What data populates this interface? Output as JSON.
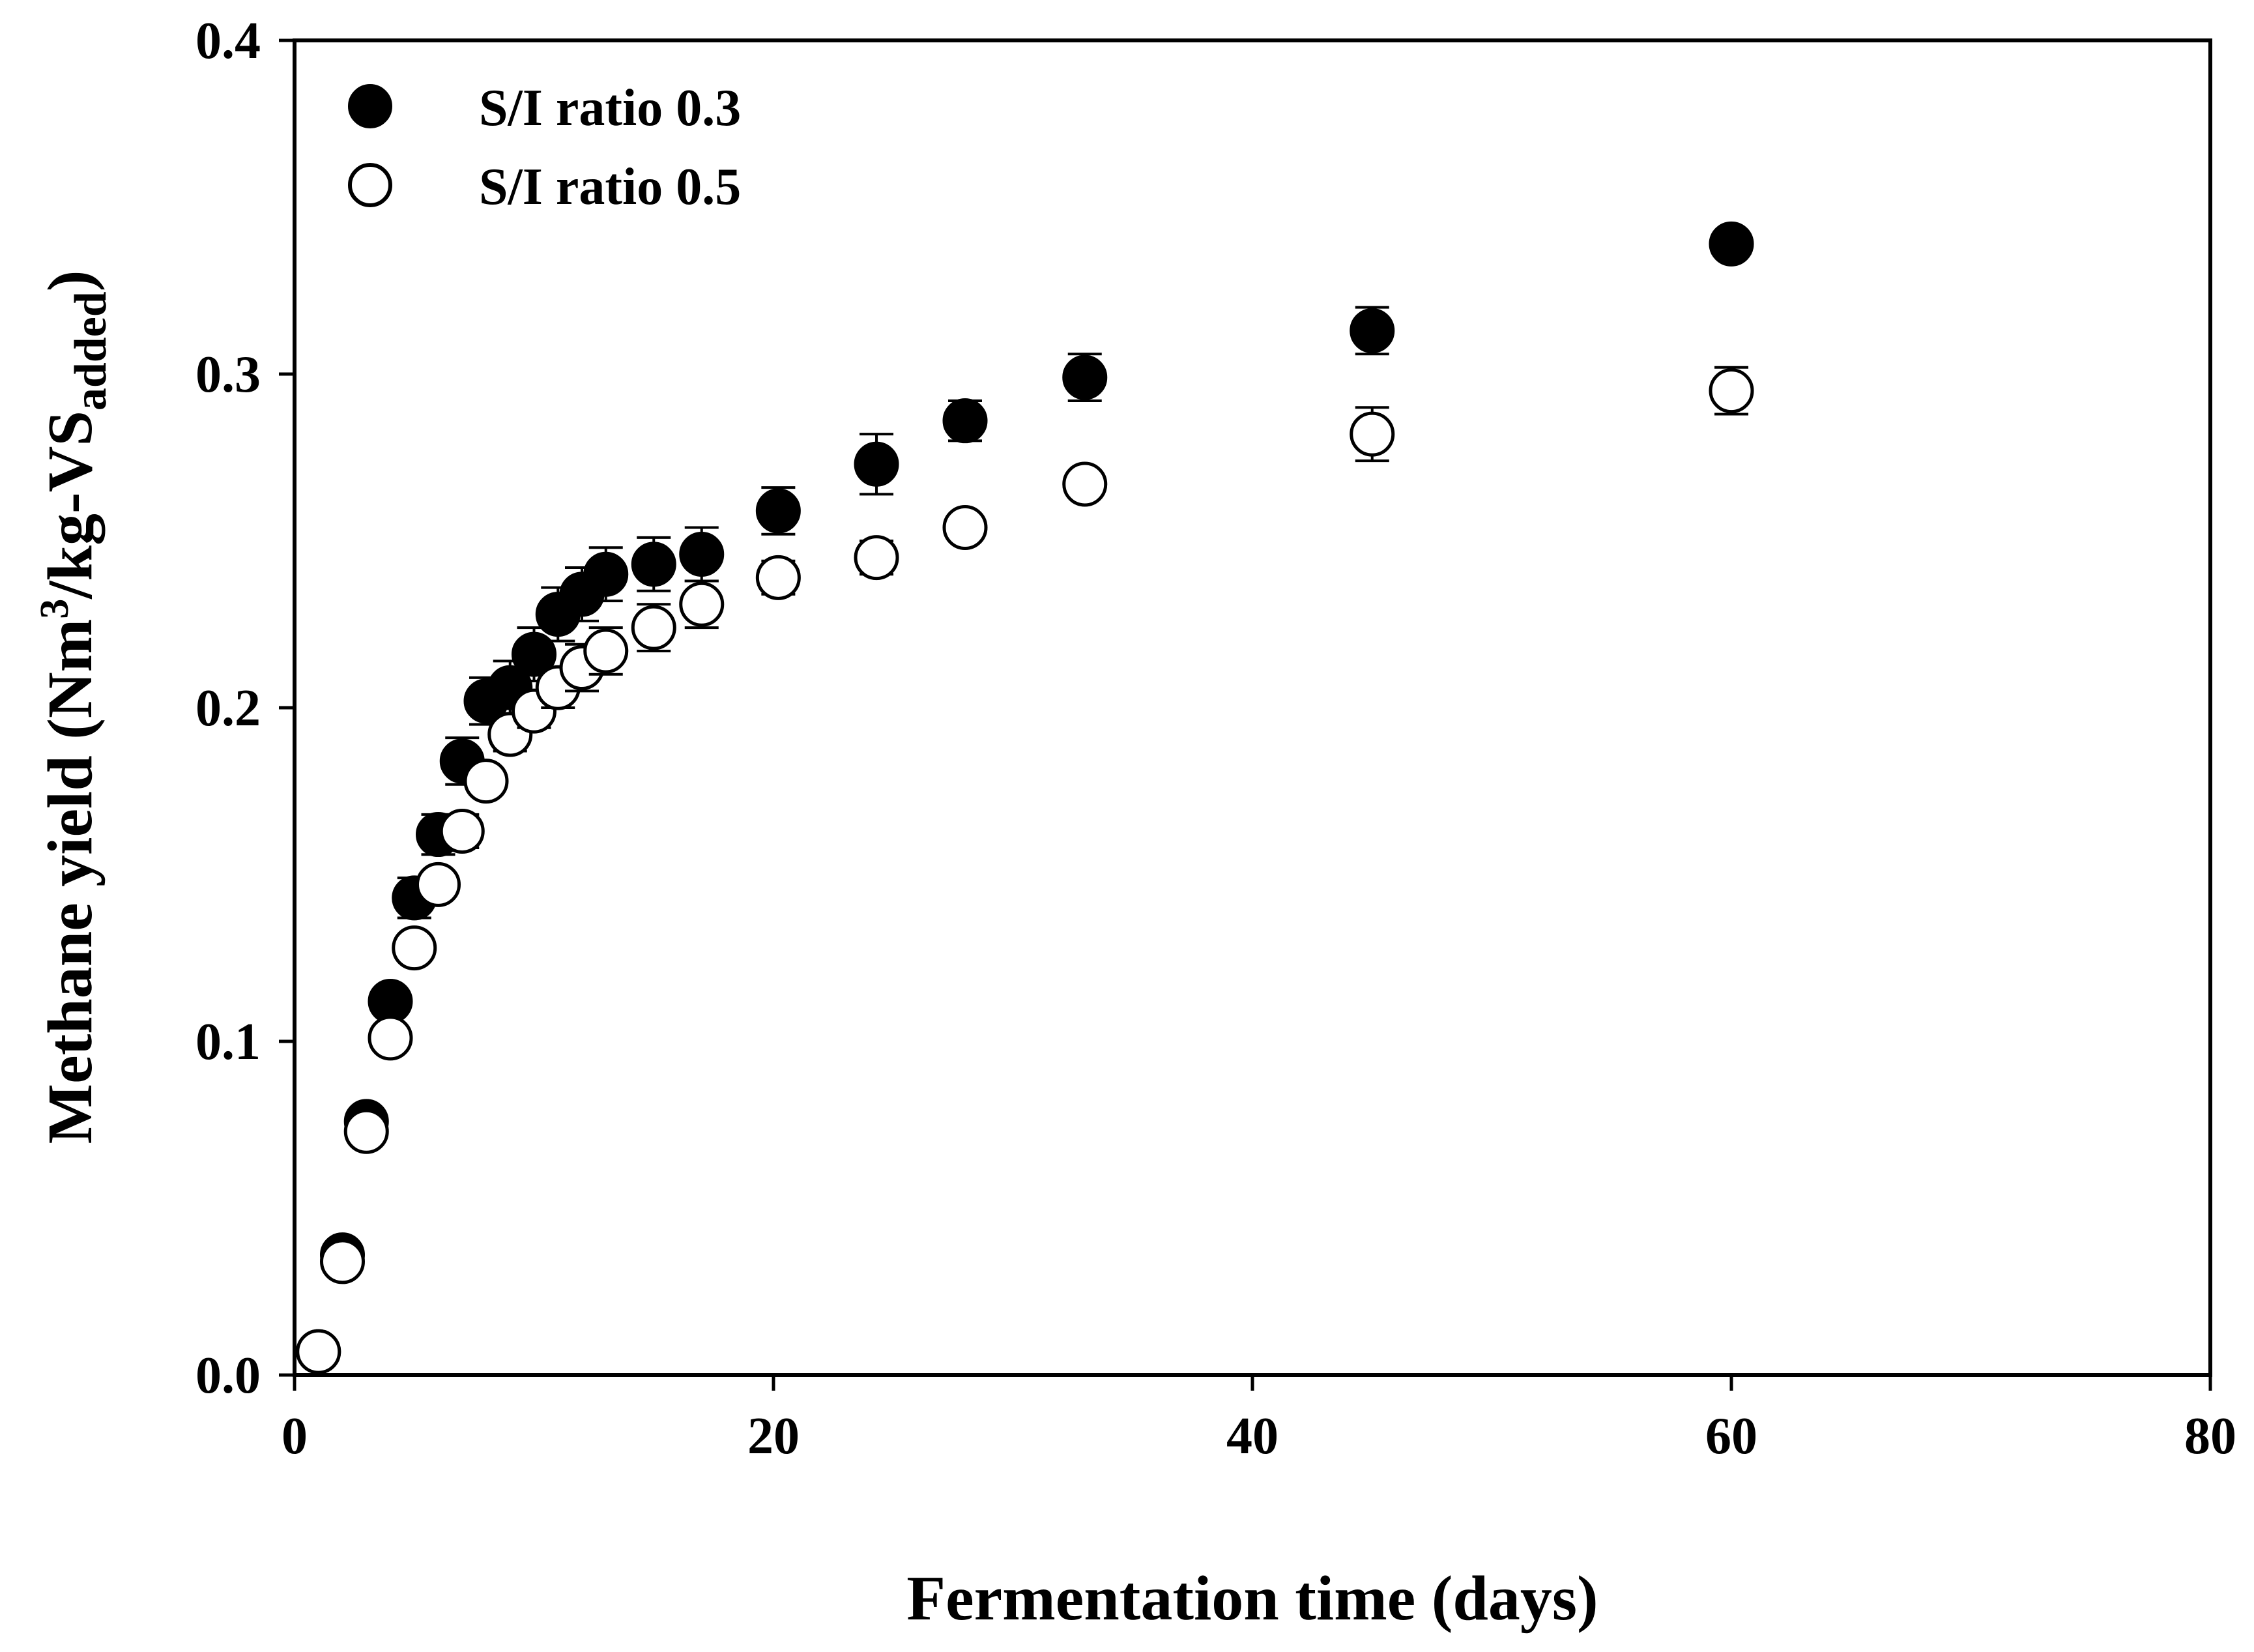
{
  "chart_data": {
    "type": "scatter",
    "title": "",
    "xlabel": "Fermentation time (days)",
    "ylabel": {
      "prefix": "Methane yield (Nm",
      "superscript": "3",
      "middle": "/kg-VS",
      "subscript": "added",
      "suffix": ")"
    },
    "xlim": [
      0,
      80
    ],
    "ylim": [
      0.0,
      0.4
    ],
    "xticks": [
      0,
      20,
      40,
      60,
      80
    ],
    "xtick_labels": [
      "0",
      "20",
      "40",
      "60",
      "80"
    ],
    "yticks": [
      0.0,
      0.1,
      0.2,
      0.3,
      0.4
    ],
    "ytick_labels": [
      "0.0",
      "0.1",
      "0.2",
      "0.3",
      "0.4"
    ],
    "grid": false,
    "legend_position": "top-left",
    "series": [
      {
        "name": "S/I ratio 0.3",
        "marker": "filled-circle",
        "color": "#000000",
        "x": [
          1,
          2,
          3,
          4,
          5,
          6,
          7,
          8,
          9,
          10,
          11,
          12,
          13,
          15,
          17,
          20.2,
          24.3,
          28,
          33,
          45,
          60
        ],
        "y": [
          0.007,
          0.036,
          0.076,
          0.112,
          0.143,
          0.162,
          0.184,
          0.202,
          0.206,
          0.216,
          0.228,
          0.234,
          0.24,
          0.243,
          0.246,
          0.259,
          0.273,
          0.286,
          0.299,
          0.313,
          0.339
        ],
        "err": [
          0.002,
          0.002,
          0.004,
          0.003,
          0.006,
          0.006,
          0.007,
          0.007,
          0.008,
          0.008,
          0.008,
          0.008,
          0.008,
          0.008,
          0.008,
          0.007,
          0.009,
          0.006,
          0.007,
          0.007,
          0.004
        ]
      },
      {
        "name": "S/I ratio 0.5",
        "marker": "open-circle",
        "color": "#000000",
        "x": [
          1,
          2,
          3,
          4,
          5,
          6,
          7,
          8,
          9,
          10,
          11,
          12,
          13,
          15,
          17,
          20.2,
          24.3,
          28,
          33,
          45,
          60
        ],
        "y": [
          0.007,
          0.034,
          0.073,
          0.101,
          0.128,
          0.147,
          0.163,
          0.178,
          0.192,
          0.199,
          0.206,
          0.212,
          0.217,
          0.224,
          0.231,
          0.239,
          0.245,
          0.254,
          0.267,
          0.282,
          0.295
        ],
        "err": [
          0.001,
          0.002,
          0.004,
          0.003,
          0.004,
          0.004,
          0.005,
          0.004,
          0.005,
          0.005,
          0.006,
          0.007,
          0.007,
          0.007,
          0.007,
          0.005,
          0.005,
          0.004,
          0.004,
          0.008,
          0.007
        ]
      }
    ]
  }
}
